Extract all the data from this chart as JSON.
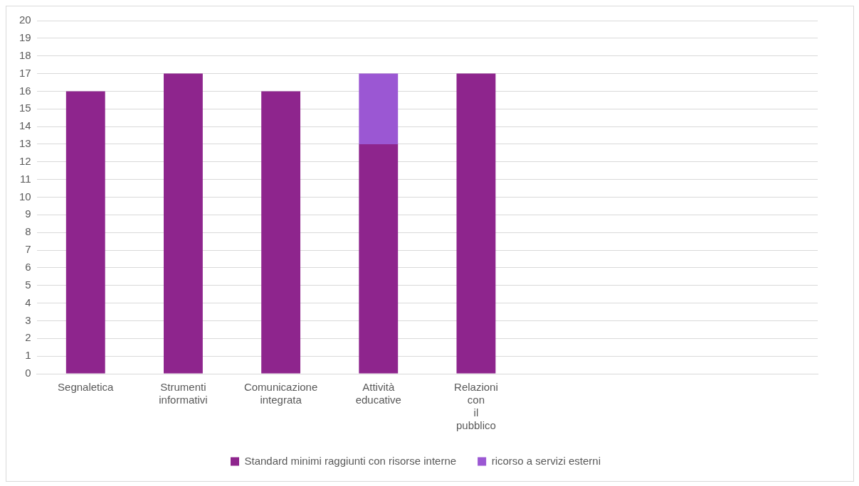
{
  "chart_data": {
    "type": "bar",
    "stacked": true,
    "categories": [
      "Segnaletica",
      "Strumenti informativi",
      "Comunicazione integrata",
      "Attività educative",
      "Relazioni con il pubblico",
      null,
      null,
      null
    ],
    "series": [
      {
        "name": "Standard minimi raggiunti con risorse interne",
        "color": "#8e258d",
        "values": [
          16,
          17,
          16,
          13,
          17,
          null,
          null,
          null
        ]
      },
      {
        "name": "ricorso a servizi esterni",
        "color": "#9b57d3",
        "values": [
          null,
          null,
          null,
          4,
          null,
          null,
          null,
          null
        ]
      }
    ],
    "ylim": [
      0,
      20
    ],
    "yticks": [
      0,
      1,
      2,
      3,
      4,
      5,
      6,
      7,
      8,
      9,
      10,
      11,
      12,
      13,
      14,
      15,
      16,
      17,
      18,
      19,
      20
    ],
    "grid": "y",
    "legend": "bottom"
  }
}
